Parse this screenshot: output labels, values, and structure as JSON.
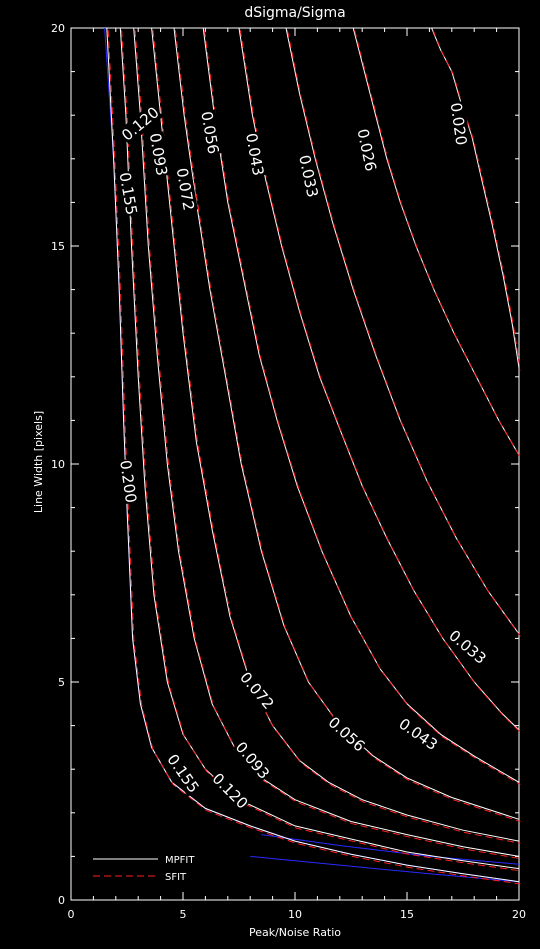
{
  "chart_data": {
    "type": "contour",
    "title": "dSigma/Sigma",
    "xlabel": "Peak/Noise Ratio",
    "ylabel": "Line Width [pixels]",
    "xlim": [
      0,
      20
    ],
    "ylim": [
      0,
      20
    ],
    "xticks": [
      0,
      5,
      10,
      15,
      20
    ],
    "yticks": [
      0,
      5,
      10,
      15,
      20
    ],
    "xtick_labels": [
      "0",
      "5",
      "10",
      "15",
      "20"
    ],
    "ytick_labels": [
      "0",
      "5",
      "10",
      "15",
      "20"
    ],
    "grid": false,
    "legend_position": "bottom-left",
    "legend": [
      {
        "label": "MPFIT",
        "style": "solid",
        "color": "#ffffff"
      },
      {
        "label": "SFIT",
        "style": "dashed",
        "color": "#ff2020"
      }
    ],
    "colors": {
      "mpfit": "#ffffff",
      "sfit": "#ff2020",
      "extra": "#2a2aff"
    },
    "series": [
      {
        "level": "0.200",
        "points": [
          [
            1.6,
            20
          ],
          [
            1.9,
            17
          ],
          [
            2.15,
            14
          ],
          [
            2.35,
            11
          ],
          [
            2.5,
            9
          ],
          [
            2.75,
            6
          ],
          [
            3.1,
            4.5
          ],
          [
            3.6,
            3.5
          ],
          [
            4.5,
            2.7
          ],
          [
            6,
            2.1
          ],
          [
            8,
            1.7
          ],
          [
            10,
            1.35
          ],
          [
            12.5,
            1.05
          ],
          [
            15,
            0.8
          ],
          [
            17.5,
            0.6
          ],
          [
            20,
            0.42
          ]
        ]
      },
      {
        "level": "0.155",
        "points": [
          [
            2.2,
            20
          ],
          [
            2.45,
            18
          ],
          [
            2.7,
            15
          ],
          [
            3,
            12
          ],
          [
            3.3,
            9.5
          ],
          [
            3.7,
            7
          ],
          [
            4.3,
            5
          ],
          [
            5,
            3.8
          ],
          [
            6,
            3
          ],
          [
            7.5,
            2.3
          ],
          [
            10,
            1.7
          ],
          [
            12.5,
            1.4
          ],
          [
            15,
            1.1
          ],
          [
            17.5,
            0.9
          ],
          [
            20,
            0.72
          ]
        ]
      },
      {
        "level": "0.120",
        "points": [
          [
            2.8,
            20
          ],
          [
            3.1,
            18
          ],
          [
            3.45,
            15
          ],
          [
            3.85,
            12.5
          ],
          [
            4.3,
            10
          ],
          [
            4.8,
            8
          ],
          [
            5.5,
            6
          ],
          [
            6.3,
            4.5
          ],
          [
            7.3,
            3.5
          ],
          [
            8.5,
            2.8
          ],
          [
            10,
            2.3
          ],
          [
            12.5,
            1.8
          ],
          [
            15,
            1.5
          ],
          [
            17.5,
            1.22
          ],
          [
            20,
            1.0
          ]
        ]
      },
      {
        "level": "0.093",
        "points": [
          [
            3.6,
            20
          ],
          [
            4,
            18
          ],
          [
            4.5,
            15.5
          ],
          [
            5,
            13
          ],
          [
            5.6,
            10.5
          ],
          [
            6.3,
            8.5
          ],
          [
            7.1,
            6.5
          ],
          [
            8,
            5
          ],
          [
            9,
            4
          ],
          [
            10.2,
            3.2
          ],
          [
            11.5,
            2.7
          ],
          [
            13,
            2.3
          ],
          [
            15,
            1.95
          ],
          [
            17.5,
            1.6
          ],
          [
            20,
            1.35
          ]
        ]
      },
      {
        "level": "0.072",
        "points": [
          [
            4.6,
            20
          ],
          [
            5.05,
            18
          ],
          [
            5.6,
            16
          ],
          [
            6.2,
            14
          ],
          [
            6.9,
            12
          ],
          [
            7.6,
            10
          ],
          [
            8.5,
            8
          ],
          [
            9.5,
            6.3
          ],
          [
            10.6,
            5
          ],
          [
            12,
            4
          ],
          [
            13.5,
            3.3
          ],
          [
            15,
            2.8
          ],
          [
            17,
            2.35
          ],
          [
            20,
            1.85
          ]
        ]
      },
      {
        "level": "0.056",
        "points": [
          [
            5.9,
            20
          ],
          [
            6.4,
            18
          ],
          [
            7,
            16
          ],
          [
            7.6,
            14.5
          ],
          [
            8.4,
            12.5
          ],
          [
            9.2,
            11
          ],
          [
            10.1,
            9.5
          ],
          [
            11.2,
            8
          ],
          [
            12.5,
            6.5
          ],
          [
            13.8,
            5.3
          ],
          [
            15,
            4.5
          ],
          [
            16.5,
            3.8
          ],
          [
            18,
            3.3
          ],
          [
            20,
            2.7
          ]
        ]
      },
      {
        "level": "0.043",
        "points": [
          [
            7.5,
            20
          ],
          [
            8.1,
            18
          ],
          [
            8.7,
            16.5
          ],
          [
            9.4,
            15
          ],
          [
            10.2,
            13.5
          ],
          [
            11.1,
            12
          ],
          [
            12,
            10.8
          ],
          [
            13,
            9.5
          ],
          [
            14.1,
            8.3
          ],
          [
            15.3,
            7.1
          ],
          [
            16.6,
            6
          ],
          [
            18,
            5
          ],
          [
            19.2,
            4.3
          ],
          [
            20,
            3.9
          ]
        ]
      },
      {
        "level": "0.033",
        "points": [
          [
            9.6,
            20
          ],
          [
            10.2,
            18.5
          ],
          [
            10.9,
            17
          ],
          [
            11.7,
            15.5
          ],
          [
            12.6,
            14
          ],
          [
            13.6,
            12.5
          ],
          [
            14.7,
            11
          ],
          [
            15.9,
            9.6
          ],
          [
            17.2,
            8.3
          ],
          [
            18.6,
            7.1
          ],
          [
            20,
            6.1
          ]
        ]
      },
      {
        "level": "0.026",
        "points": [
          [
            12.6,
            20
          ],
          [
            13.1,
            19
          ],
          [
            13.6,
            18
          ],
          [
            14.1,
            17
          ],
          [
            14.7,
            16
          ],
          [
            15.4,
            15
          ],
          [
            16.2,
            14
          ],
          [
            17.1,
            13
          ],
          [
            18.1,
            12
          ],
          [
            19.1,
            11
          ],
          [
            20,
            10.2
          ]
        ]
      },
      {
        "level": "0.020",
        "points": [
          [
            16.1,
            20
          ],
          [
            16.5,
            19.5
          ],
          [
            17,
            19
          ],
          [
            17.4,
            18.3
          ],
          [
            17.9,
            17.5
          ],
          [
            18.3,
            16.6
          ],
          [
            18.8,
            15.5
          ],
          [
            19.3,
            14.3
          ],
          [
            19.7,
            13.2
          ],
          [
            20,
            12.2
          ]
        ]
      }
    ],
    "blue_lines": [
      {
        "points": [
          [
            1.5,
            20
          ],
          [
            1.9,
            17
          ],
          [
            2.15,
            14
          ],
          [
            2.35,
            11
          ],
          [
            2.5,
            9
          ],
          [
            2.75,
            6
          ],
          [
            3.1,
            4.5
          ],
          [
            3.6,
            3.5
          ],
          [
            4.5,
            2.7
          ],
          [
            6,
            2.1
          ],
          [
            8,
            1.7
          ],
          [
            10,
            1.35
          ],
          [
            12.5,
            1.05
          ],
          [
            15,
            0.8
          ],
          [
            17.5,
            0.6
          ],
          [
            20,
            0.42
          ]
        ]
      },
      {
        "points": [
          [
            8,
            1.0
          ],
          [
            12,
            0.8
          ],
          [
            16,
            0.6
          ],
          [
            20,
            0.42
          ]
        ]
      },
      {
        "points": [
          [
            8.5,
            1.5
          ],
          [
            12,
            1.25
          ],
          [
            16,
            1.0
          ],
          [
            20,
            0.82
          ]
        ]
      }
    ],
    "labels": [
      {
        "text": "0.020",
        "x": 17.3,
        "y": 17.8,
        "rotate": 82
      },
      {
        "text": "0.026",
        "x": 13.2,
        "y": 17.2,
        "rotate": 78
      },
      {
        "text": "0.033",
        "x": 10.6,
        "y": 16.6,
        "rotate": 78
      },
      {
        "text": "0.043",
        "x": 8.2,
        "y": 17.1,
        "rotate": 80
      },
      {
        "text": "0.056",
        "x": 6.2,
        "y": 17.6,
        "rotate": 80
      },
      {
        "text": "0.072",
        "x": 5.1,
        "y": 16.3,
        "rotate": 80
      },
      {
        "text": "0.093",
        "x": 3.9,
        "y": 17.1,
        "rotate": 80
      },
      {
        "text": "0.120",
        "x": 3.1,
        "y": 17.8,
        "rotate": -40
      },
      {
        "text": "0.155",
        "x": 2.55,
        "y": 16.2,
        "rotate": 80
      },
      {
        "text": "0.200",
        "x": 2.55,
        "y": 9.6,
        "rotate": 82
      },
      {
        "text": "0.033",
        "x": 17.7,
        "y": 5.8,
        "rotate": 40
      },
      {
        "text": "0.043",
        "x": 15.5,
        "y": 3.8,
        "rotate": 35
      },
      {
        "text": "0.056",
        "x": 12.3,
        "y": 3.8,
        "rotate": 42
      },
      {
        "text": "0.072",
        "x": 8.3,
        "y": 4.8,
        "rotate": 50
      },
      {
        "text": "0.093",
        "x": 8.1,
        "y": 3.2,
        "rotate": 50
      },
      {
        "text": "0.120",
        "x": 7.1,
        "y": 2.5,
        "rotate": 45
      },
      {
        "text": "0.155",
        "x": 5.0,
        "y": 2.9,
        "rotate": 55
      }
    ]
  }
}
